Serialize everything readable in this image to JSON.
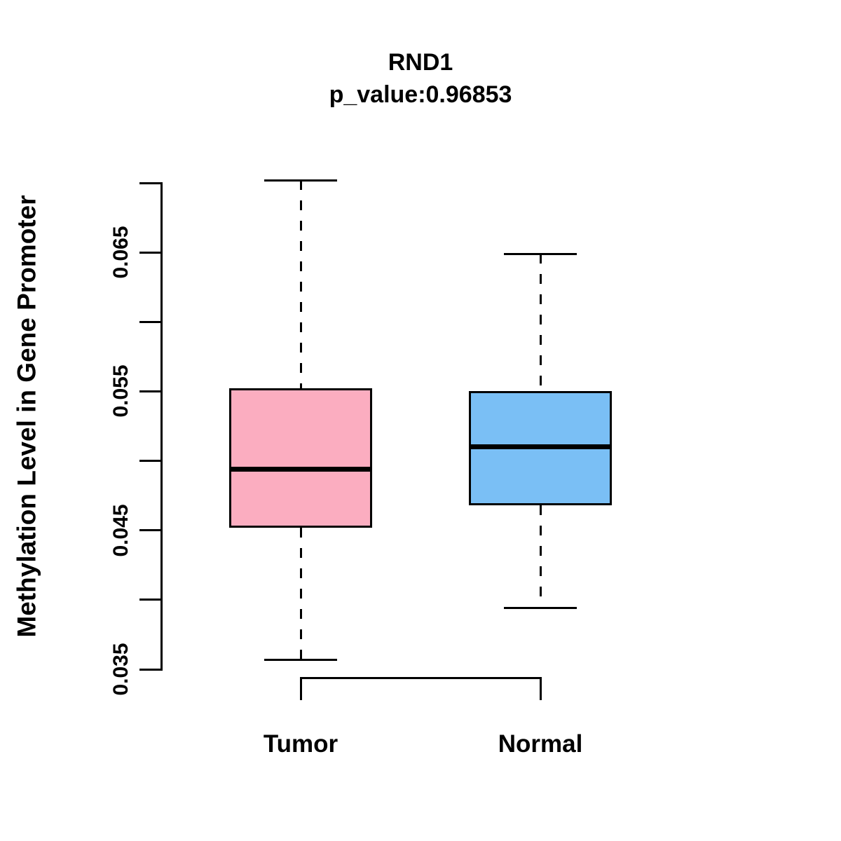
{
  "figure": {
    "title": "RND1",
    "subtitle": "p_value:0.96853"
  },
  "chart_data": {
    "type": "boxplot",
    "title": "RND1",
    "subtitle": "p_value:0.96853",
    "xlabel": "",
    "ylabel": "Methylation Level in Gene Promoter",
    "ylim": [
      0.035,
      0.07
    ],
    "grid": false,
    "legend": false,
    "yticks": [
      {
        "value": 0.035,
        "label": "0.035"
      },
      {
        "value": 0.04,
        "label": ""
      },
      {
        "value": 0.045,
        "label": "0.045"
      },
      {
        "value": 0.05,
        "label": ""
      },
      {
        "value": 0.055,
        "label": "0.055"
      },
      {
        "value": 0.06,
        "label": ""
      },
      {
        "value": 0.065,
        "label": "0.065"
      },
      {
        "value": 0.07,
        "label": ""
      }
    ],
    "groups": [
      {
        "label": "Tumor",
        "fill_color": "#FBADC0",
        "whisker_low": 0.0357,
        "q1": 0.0452,
        "median": 0.0494,
        "q3": 0.0552,
        "whisker_high": 0.0702
      },
      {
        "label": "Normal",
        "fill_color": "#7ABFF5",
        "whisker_low": 0.0394,
        "q1": 0.0468,
        "median": 0.051,
        "q3": 0.055,
        "whisker_high": 0.0649
      }
    ]
  }
}
